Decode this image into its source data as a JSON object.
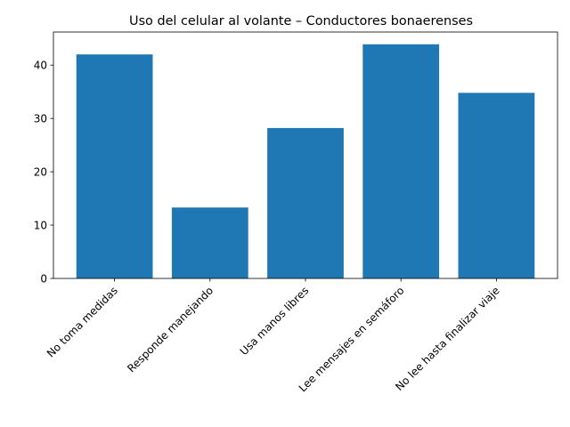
{
  "chart_data": {
    "type": "bar",
    "title": "Uso del celular al volante – Conductores bonaerenses",
    "categories": [
      "No toma medidas",
      "Responde manejando",
      "Usa manos libres",
      "Lee mensajes en semáforo",
      "No lee hasta finalizar viaje"
    ],
    "values": [
      42,
      13.3,
      28.2,
      43.9,
      34.8
    ],
    "color": "#1f77b4",
    "ylim": [
      0,
      46.2
    ],
    "yticks": [
      0,
      10,
      20,
      30,
      40
    ],
    "grid": false
  }
}
